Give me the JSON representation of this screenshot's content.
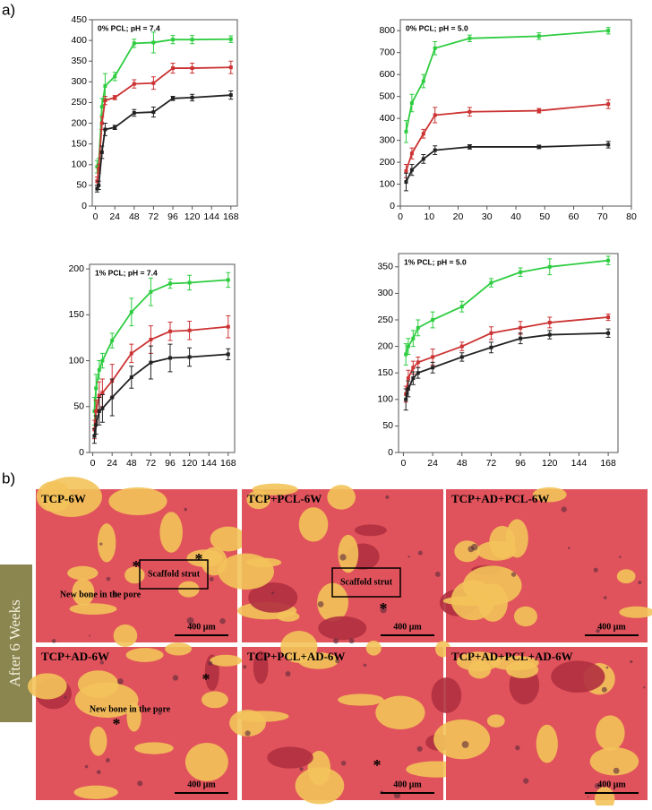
{
  "panel_a_label": "a)",
  "panel_b_label": "b)",
  "chart_data": [
    {
      "type": "line",
      "title": "0% PCL; pH = 7.4",
      "x": [
        2,
        4,
        8,
        12,
        24,
        48,
        72,
        96,
        120,
        168
      ],
      "xlim": [
        -4,
        176
      ],
      "xticks": [
        0,
        24,
        48,
        72,
        96,
        120,
        144,
        168
      ],
      "ylim": [
        0,
        450
      ],
      "yticks": [
        0,
        50,
        100,
        150,
        200,
        250,
        300,
        350,
        400,
        450
      ],
      "series": [
        {
          "color": "#2ecc40",
          "values": [
            95,
            100,
            240,
            290,
            313,
            393,
            395,
            402,
            402,
            403
          ],
          "errors": [
            15,
            15,
            20,
            30,
            10,
            10,
            25,
            10,
            10,
            8
          ]
        },
        {
          "color": "#cc3333",
          "values": [
            60,
            90,
            200,
            255,
            262,
            295,
            297,
            333,
            333,
            335
          ],
          "errors": [
            10,
            10,
            15,
            10,
            5,
            10,
            15,
            12,
            12,
            15
          ]
        },
        {
          "color": "#222222",
          "values": [
            42,
            50,
            130,
            185,
            190,
            225,
            227,
            260,
            262,
            268
          ],
          "errors": [
            8,
            10,
            15,
            15,
            5,
            8,
            12,
            5,
            8,
            10
          ]
        }
      ]
    },
    {
      "type": "line",
      "title": "0% PCL; pH = 5.0",
      "x": [
        2,
        4,
        8,
        12,
        24,
        48,
        72
      ],
      "xlim": [
        0,
        80
      ],
      "xticks": [
        0,
        10,
        20,
        30,
        40,
        50,
        60,
        70,
        80
      ],
      "ylim": [
        0,
        850
      ],
      "yticks": [
        0,
        100,
        200,
        300,
        400,
        500,
        600,
        700,
        800
      ],
      "series": [
        {
          "color": "#2ecc40",
          "values": [
            340,
            470,
            570,
            720,
            765,
            775,
            800
          ],
          "errors": [
            50,
            40,
            30,
            30,
            15,
            15,
            15
          ]
        },
        {
          "color": "#cc3333",
          "values": [
            160,
            240,
            330,
            415,
            430,
            435,
            465
          ],
          "errors": [
            30,
            25,
            20,
            35,
            20,
            10,
            20
          ]
        },
        {
          "color": "#222222",
          "values": [
            110,
            165,
            215,
            255,
            270,
            270,
            280
          ],
          "errors": [
            40,
            25,
            20,
            20,
            10,
            8,
            15
          ]
        }
      ]
    },
    {
      "type": "line",
      "title": "1% PCL; pH = 7.4",
      "x": [
        2,
        4,
        8,
        12,
        24,
        48,
        72,
        96,
        120,
        168
      ],
      "xlim": [
        -4,
        176
      ],
      "xticks": [
        0,
        24,
        48,
        72,
        96,
        120,
        144,
        168
      ],
      "ylim": [
        0,
        205
      ],
      "yticks": [
        0,
        50,
        100,
        150,
        200
      ],
      "series": [
        {
          "color": "#2ecc40",
          "values": [
            45,
            70,
            90,
            100,
            122,
            153,
            175,
            184,
            185,
            188
          ],
          "errors": [
            15,
            15,
            10,
            8,
            8,
            15,
            15,
            5,
            8,
            8
          ]
        },
        {
          "color": "#cc3333",
          "values": [
            25,
            45,
            62,
            65,
            78,
            108,
            123,
            132,
            133,
            137
          ],
          "errors": [
            10,
            12,
            15,
            15,
            18,
            10,
            15,
            10,
            10,
            12
          ]
        },
        {
          "color": "#222222",
          "values": [
            18,
            30,
            45,
            48,
            60,
            82,
            98,
            103,
            104,
            107
          ],
          "errors": [
            8,
            10,
            15,
            15,
            20,
            12,
            18,
            15,
            10,
            6
          ]
        }
      ]
    },
    {
      "type": "line",
      "title": "1% PCL; pH = 5.0",
      "x": [
        2,
        4,
        8,
        12,
        24,
        48,
        72,
        96,
        120,
        168
      ],
      "xlim": [
        -4,
        176
      ],
      "xticks": [
        0,
        24,
        48,
        72,
        96,
        120,
        144,
        168
      ],
      "ylim": [
        0,
        375
      ],
      "yticks": [
        0,
        50,
        100,
        150,
        200,
        250,
        300,
        350
      ],
      "series": [
        {
          "color": "#2ecc40",
          "values": [
            185,
            200,
            215,
            235,
            250,
            275,
            320,
            340,
            350,
            362
          ],
          "errors": [
            20,
            15,
            15,
            15,
            15,
            10,
            8,
            8,
            15,
            8
          ]
        },
        {
          "color": "#cc3333",
          "values": [
            110,
            140,
            160,
            170,
            180,
            200,
            225,
            235,
            245,
            255
          ],
          "errors": [
            15,
            15,
            12,
            10,
            15,
            8,
            12,
            12,
            10,
            6
          ]
        },
        {
          "color": "#222222",
          "values": [
            100,
            120,
            140,
            150,
            160,
            180,
            198,
            215,
            222,
            225
          ],
          "errors": [
            20,
            15,
            12,
            10,
            10,
            8,
            10,
            10,
            8,
            8
          ]
        }
      ]
    }
  ],
  "histology": {
    "side_label": "After 6 Weeks",
    "images": [
      {
        "title": "TCP-6W",
        "scale_bar": "400 μm",
        "labels": [
          "New bone in the pore",
          "Scaffold strut",
          "*",
          "*"
        ]
      },
      {
        "title": "TCP+PCL-6W",
        "scale_bar": "400 μm",
        "labels": [
          "Scaffold strut",
          "*"
        ]
      },
      {
        "title": "TCP+AD+PCL-6W",
        "scale_bar": "400 μm",
        "labels": []
      },
      {
        "title": "TCP+AD-6W",
        "scale_bar": "400 μm",
        "labels": [
          "New bone in the pore",
          "*",
          "*"
        ]
      },
      {
        "title": "TCP+PCL+AD-6W",
        "scale_bar": "400 μm",
        "labels": [
          "*"
        ]
      },
      {
        "title": "TCP+AD+PCL+AD-6W",
        "scale_bar": "400 μm",
        "labels": []
      }
    ]
  }
}
